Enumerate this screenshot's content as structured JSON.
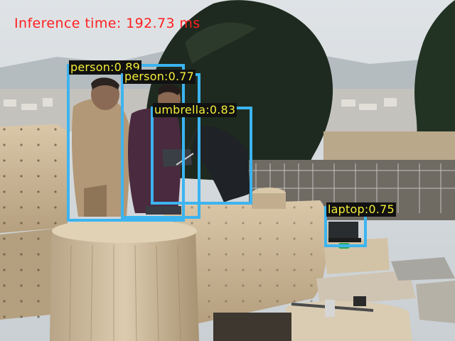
{
  "inference": {
    "label": "Inference time:",
    "value": "192.73 ms"
  },
  "detections": [
    {
      "label": "person",
      "score": "0.89",
      "text": "person:0.89"
    },
    {
      "label": "person",
      "score": "0.77",
      "text": "person:0.77"
    },
    {
      "label": "umbrella",
      "score": "0.83",
      "text": "umbrella:0.83"
    },
    {
      "label": "laptop",
      "score": "0.75",
      "text": "laptop:0.75"
    }
  ],
  "colors": {
    "box": "#3cb4f0",
    "label_text": "#f4ee3a",
    "label_bg": "#111111",
    "hud_text": "#ff1f1f"
  }
}
